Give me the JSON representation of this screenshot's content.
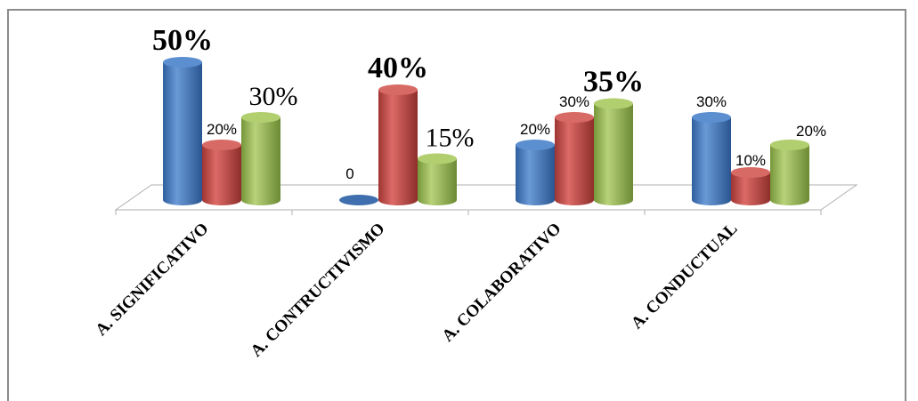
{
  "chart_data": {
    "type": "bar",
    "categories": [
      "A. SIGNIFICATIVO",
      "A. CONTRUCTIVISMO",
      "A. COLABORATIVO",
      "A. CONDUCTUAL"
    ],
    "series": [
      {
        "values": [
          50,
          0,
          20,
          30
        ],
        "color": "#4a7ebf"
      },
      {
        "values": [
          20,
          40,
          30,
          10
        ],
        "color": "#c0504d"
      },
      {
        "values": [
          30,
          15,
          35,
          20
        ],
        "color": "#9bbb59"
      }
    ],
    "data_labels": [
      [
        "50%",
        "0",
        "20%",
        "30%"
      ],
      [
        "20%",
        "40%",
        "30%",
        "10%"
      ],
      [
        "30%",
        "15%",
        "35%",
        "20%"
      ]
    ],
    "ylim": [
      0,
      50
    ],
    "grid": false,
    "legend": "none",
    "style": "3d-cylinder"
  }
}
